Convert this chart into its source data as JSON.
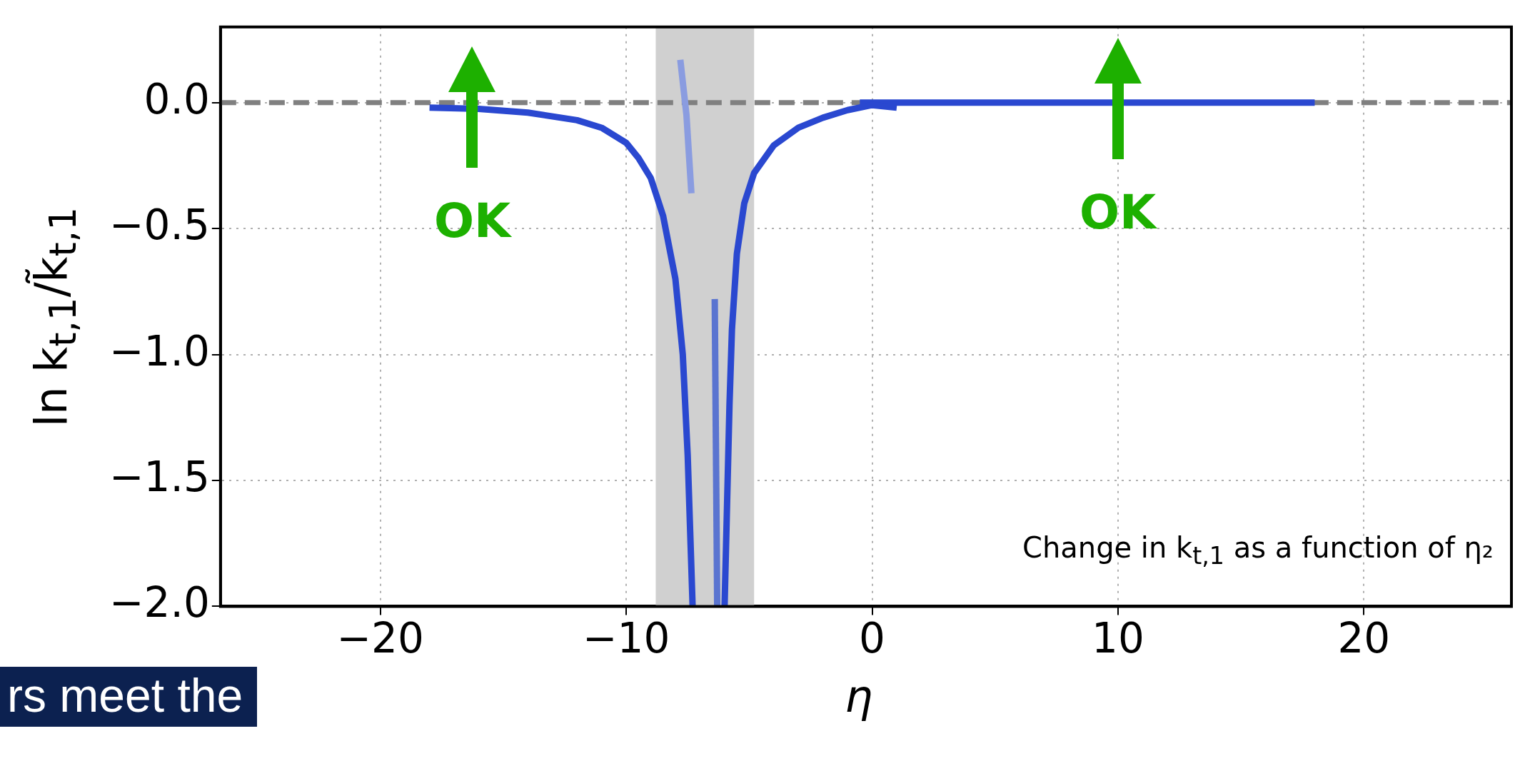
{
  "chart_data": {
    "type": "line",
    "xlabel": "η",
    "ylabel": "ln k$_{t,1}$/k̃$_{t,1}$",
    "xlim": [
      -26.5,
      26
    ],
    "ylim": [
      -2.0,
      0.3
    ],
    "xticks": [
      {
        "value": -20,
        "label": "−20"
      },
      {
        "value": -10,
        "label": "−10"
      },
      0,
      10,
      20
    ],
    "yticks": [
      {
        "value": 0,
        "label": "0.0"
      },
      {
        "value": -0.5,
        "label": "−0.5"
      },
      {
        "value": -1,
        "label": "−1.0"
      },
      {
        "value": -1.5,
        "label": "−1.5"
      },
      {
        "value": -2,
        "label": "−2.0"
      }
    ],
    "grid": true,
    "legend": false,
    "marker": "none",
    "line_style": "solid",
    "series": [
      {
        "color": "#2a48d0",
        "x": [
          -18,
          -16,
          -14,
          -12,
          -11,
          -10,
          -9.5,
          -9,
          -8.5,
          -8,
          -7.7,
          -7.5,
          -7.4,
          -7.3
        ],
        "values": [
          -0.02,
          -0.025,
          -0.04,
          -0.07,
          -0.1,
          -0.16,
          -0.22,
          -0.3,
          -0.45,
          -0.7,
          -1.0,
          -1.4,
          -1.7,
          -2.0
        ]
      },
      {
        "color": "#2a48d0",
        "x": [
          -6.0,
          -5.9,
          -5.8,
          -5.7,
          -5.5,
          -5.2,
          -4.8,
          -4,
          -3,
          -2,
          -1,
          0,
          1
        ],
        "values": [
          -2.0,
          -1.6,
          -1.2,
          -0.9,
          -0.6,
          -0.4,
          -0.28,
          -0.17,
          -0.1,
          -0.06,
          -0.03,
          -0.01,
          -0.02
        ]
      },
      {
        "color": "#2a48d0",
        "x": [
          -0.5,
          18
        ],
        "values": [
          0,
          0
        ]
      },
      {
        "color": "#8a9ce0",
        "x": [
          -7.8,
          -7.55,
          -7.35
        ],
        "values": [
          0.17,
          -0.05,
          -0.36
        ]
      },
      {
        "color": "#5a74d0",
        "x": [
          -6.4,
          -6.3
        ],
        "values": [
          -0.78,
          -2.0
        ]
      }
    ],
    "ref_lines": [
      {
        "axis": "y",
        "value": 0,
        "color": "#808080",
        "line_style": "dashed"
      }
    ],
    "bands": [
      {
        "axis": "x",
        "from": -8.8,
        "to": -4.8,
        "color": "#d0d0d0"
      }
    ],
    "annotations": [
      "OK",
      "OK",
      "Change in k$_{t,1}$ as a function of η₂",
      "rs meet the"
    ]
  }
}
